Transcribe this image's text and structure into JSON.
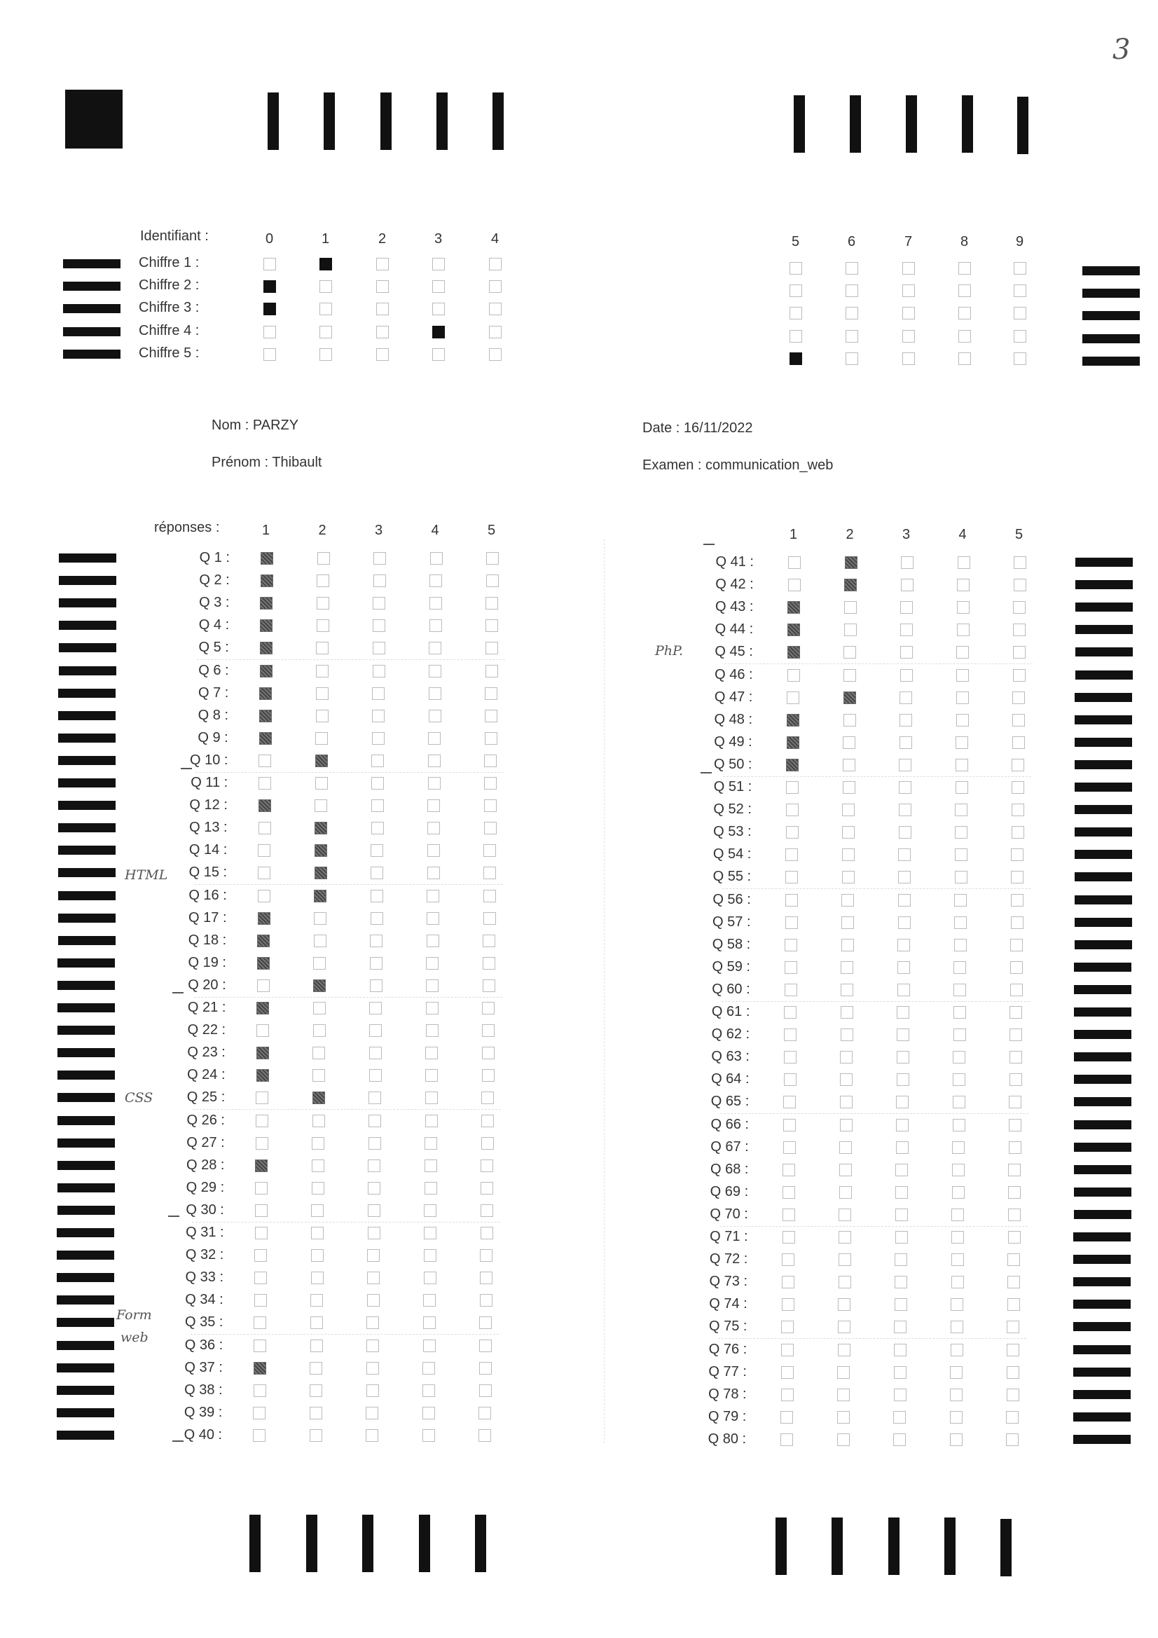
{
  "page_number": "3",
  "id_section": {
    "label": "Identifiant :",
    "digits_left": [
      "0",
      "1",
      "2",
      "3",
      "4"
    ],
    "digits_right": [
      "5",
      "6",
      "7",
      "8",
      "9"
    ],
    "rows": [
      {
        "label": "Chiffre 1 :",
        "value": 1
      },
      {
        "label": "Chiffre 2 :",
        "value": 0
      },
      {
        "label": "Chiffre 3 :",
        "value": 0
      },
      {
        "label": "Chiffre 4 :",
        "value": 3
      },
      {
        "label": "Chiffre 5 :",
        "value": 5
      }
    ]
  },
  "student": {
    "nom": "Nom : PARZY",
    "prenom": "Prénom : Thibault",
    "date": "Date : 16/11/2022",
    "examen": "Examen : communication_web"
  },
  "answers": {
    "header": "réponses :",
    "options": [
      "1",
      "2",
      "3",
      "4",
      "5"
    ],
    "left": [
      {
        "q": "Q 1 :",
        "a": 1
      },
      {
        "q": "Q 2 :",
        "a": 1
      },
      {
        "q": "Q 3 :",
        "a": 1
      },
      {
        "q": "Q 4 :",
        "a": 1
      },
      {
        "q": "Q 5 :",
        "a": 1
      },
      {
        "q": "Q 6 :",
        "a": 1
      },
      {
        "q": "Q 7 :",
        "a": 1
      },
      {
        "q": "Q 8 :",
        "a": 1
      },
      {
        "q": "Q 9 :",
        "a": 1
      },
      {
        "q": "Q 10 :",
        "a": 2
      },
      {
        "q": "Q 11 :",
        "a": 0
      },
      {
        "q": "Q 12 :",
        "a": 1
      },
      {
        "q": "Q 13 :",
        "a": 2
      },
      {
        "q": "Q 14 :",
        "a": 2
      },
      {
        "q": "Q 15 :",
        "a": 2
      },
      {
        "q": "Q 16 :",
        "a": 2
      },
      {
        "q": "Q 17 :",
        "a": 1
      },
      {
        "q": "Q 18 :",
        "a": 1
      },
      {
        "q": "Q 19 :",
        "a": 1
      },
      {
        "q": "Q 20 :",
        "a": 2
      },
      {
        "q": "Q 21 :",
        "a": 1
      },
      {
        "q": "Q 22 :",
        "a": 0
      },
      {
        "q": "Q 23 :",
        "a": 1
      },
      {
        "q": "Q 24 :",
        "a": 1
      },
      {
        "q": "Q 25 :",
        "a": 2
      },
      {
        "q": "Q 26 :",
        "a": 0
      },
      {
        "q": "Q 27 :",
        "a": 0
      },
      {
        "q": "Q 28 :",
        "a": 1
      },
      {
        "q": "Q 29 :",
        "a": 0
      },
      {
        "q": "Q 30 :",
        "a": 0
      },
      {
        "q": "Q 31 :",
        "a": 0
      },
      {
        "q": "Q 32 :",
        "a": 0
      },
      {
        "q": "Q 33 :",
        "a": 0
      },
      {
        "q": "Q 34 :",
        "a": 0
      },
      {
        "q": "Q 35 :",
        "a": 0
      },
      {
        "q": "Q 36 :",
        "a": 0
      },
      {
        "q": "Q 37 :",
        "a": 1
      },
      {
        "q": "Q 38 :",
        "a": 0
      },
      {
        "q": "Q 39 :",
        "a": 0
      },
      {
        "q": "Q 40 :",
        "a": 0
      }
    ],
    "right": [
      {
        "q": "Q 41 :",
        "a": 2
      },
      {
        "q": "Q 42 :",
        "a": 2
      },
      {
        "q": "Q 43 :",
        "a": 1
      },
      {
        "q": "Q 44 :",
        "a": 1
      },
      {
        "q": "Q 45 :",
        "a": 1
      },
      {
        "q": "Q 46 :",
        "a": 0
      },
      {
        "q": "Q 47 :",
        "a": 2
      },
      {
        "q": "Q 48 :",
        "a": 1
      },
      {
        "q": "Q 49 :",
        "a": 1
      },
      {
        "q": "Q 50 :",
        "a": 1
      },
      {
        "q": "Q 51 :",
        "a": 0
      },
      {
        "q": "Q 52 :",
        "a": 0
      },
      {
        "q": "Q 53 :",
        "a": 0
      },
      {
        "q": "Q 54 :",
        "a": 0
      },
      {
        "q": "Q 55 :",
        "a": 0
      },
      {
        "q": "Q 56 :",
        "a": 0
      },
      {
        "q": "Q 57 :",
        "a": 0
      },
      {
        "q": "Q 58 :",
        "a": 0
      },
      {
        "q": "Q 59 :",
        "a": 0
      },
      {
        "q": "Q 60 :",
        "a": 0
      },
      {
        "q": "Q 61 :",
        "a": 0
      },
      {
        "q": "Q 62 :",
        "a": 0
      },
      {
        "q": "Q 63 :",
        "a": 0
      },
      {
        "q": "Q 64 :",
        "a": 0
      },
      {
        "q": "Q 65 :",
        "a": 0
      },
      {
        "q": "Q 66 :",
        "a": 0
      },
      {
        "q": "Q 67 :",
        "a": 0
      },
      {
        "q": "Q 68 :",
        "a": 0
      },
      {
        "q": "Q 69 :",
        "a": 0
      },
      {
        "q": "Q 70 :",
        "a": 0
      },
      {
        "q": "Q 71 :",
        "a": 0
      },
      {
        "q": "Q 72 :",
        "a": 0
      },
      {
        "q": "Q 73 :",
        "a": 0
      },
      {
        "q": "Q 74 :",
        "a": 0
      },
      {
        "q": "Q 75 :",
        "a": 0
      },
      {
        "q": "Q 76 :",
        "a": 0
      },
      {
        "q": "Q 77 :",
        "a": 0
      },
      {
        "q": "Q 78 :",
        "a": 0
      },
      {
        "q": "Q 79 :",
        "a": 0
      },
      {
        "q": "Q 80 :",
        "a": 0
      }
    ]
  },
  "handwritten": {
    "html": "HTML",
    "css": "CSS",
    "form_line1": "Form",
    "form_line2": "web",
    "php": "PhP."
  }
}
